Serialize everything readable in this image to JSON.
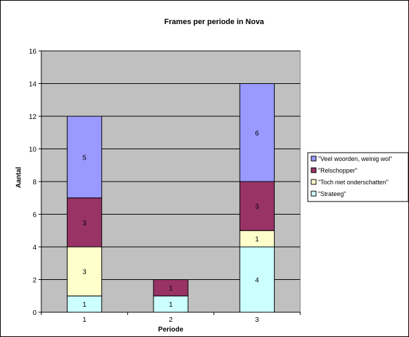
{
  "chart_data": {
    "type": "bar",
    "stacked": true,
    "title": "Frames per periode in Nova",
    "xlabel": "Periode",
    "ylabel": "Aantal",
    "categories": [
      "1",
      "2",
      "3"
    ],
    "ylim": [
      0,
      16
    ],
    "yticks": [
      0,
      2,
      4,
      6,
      8,
      10,
      12,
      14,
      16
    ],
    "grid": true,
    "legend_position": "right",
    "series": [
      {
        "name": "\"Strateeg\"",
        "values": [
          1,
          1,
          4
        ],
        "color": "#ccffff"
      },
      {
        "name": "\"Toch niet onderschatten\"",
        "values": [
          3,
          0,
          1
        ],
        "color": "#ffffcc"
      },
      {
        "name": "\"Relschopper\"",
        "values": [
          3,
          1,
          3
        ],
        "color": "#993366"
      },
      {
        "name": "\"Veel woorden, weinig wol\"",
        "values": [
          5,
          0,
          6
        ],
        "color": "#9999ff"
      }
    ],
    "plot_background": "#c0c0c0"
  }
}
